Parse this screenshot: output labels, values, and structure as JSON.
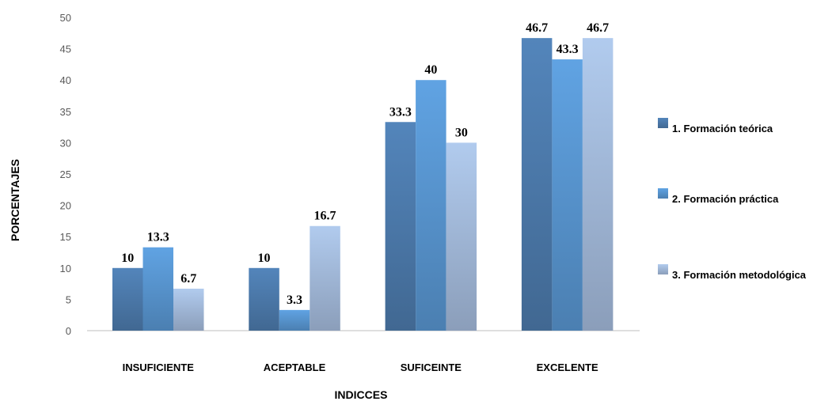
{
  "chart_data": {
    "type": "bar",
    "title": "",
    "xlabel": "INDICCES",
    "ylabel": "PORCENTAJES",
    "ylim": [
      0,
      50
    ],
    "yticks": [
      "0",
      "5",
      "10",
      "15",
      "20",
      "25",
      "30",
      "35",
      "40",
      "45",
      "50"
    ],
    "grid": false,
    "legend": "right",
    "categories": [
      "INSUFICIENTE",
      "ACEPTABLE",
      "SUFICEINTE",
      "EXCELENTE"
    ],
    "series": [
      {
        "name": "1. Formación teórica",
        "color": "#4F7FB2",
        "values": [
          10,
          10,
          33.3,
          46.7
        ],
        "labels": [
          "10",
          "10",
          "33.3",
          "46.7"
        ]
      },
      {
        "name": "2.  Formación práctica",
        "color": "#5B9BD8",
        "values": [
          13.3,
          3.3,
          40,
          43.3
        ],
        "labels": [
          "13.3",
          "3.3",
          "40",
          "43.3"
        ]
      },
      {
        "name": "3. Formación metodológica",
        "color": "#A9C1E3",
        "values": [
          6.7,
          16.7,
          30,
          46.7
        ],
        "labels": [
          "6.7",
          "16.7",
          "30",
          "46.7"
        ]
      }
    ]
  }
}
